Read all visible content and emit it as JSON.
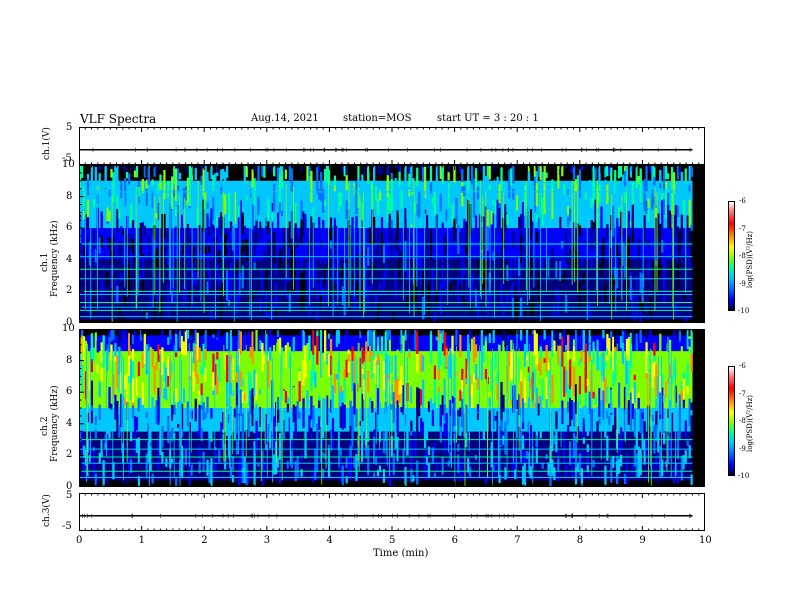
{
  "header": {
    "title": "VLF Spectra",
    "date": "Aug.14, 2021",
    "station": "station=MOS",
    "start": "start UT =   3 : 20 : 1"
  },
  "xaxis": {
    "label": "Time (min)",
    "ticks": [
      "0",
      "1",
      "2",
      "3",
      "4",
      "5",
      "6",
      "7",
      "8",
      "9",
      "10"
    ]
  },
  "panels": {
    "ch1v": {
      "label": "ch.1(V)",
      "ticks": [
        "5",
        "-5"
      ]
    },
    "ch1spec": {
      "label_ch": "ch.1",
      "label_freq": "Frequency (kHz)",
      "ticks": [
        "10",
        "8",
        "6",
        "4",
        "2",
        "0"
      ]
    },
    "ch2spec": {
      "label_ch": "ch.2",
      "label_freq": "Frequency (kHz)",
      "ticks": [
        "10",
        "8",
        "6",
        "4",
        "2",
        "0"
      ]
    },
    "ch3v": {
      "label": "ch.3(V)",
      "ticks": [
        "5",
        "-5"
      ]
    }
  },
  "colorbar": {
    "label": "log(PSD)(V²/Hz)",
    "ticks": [
      "-6",
      "-7",
      "-8",
      "-9",
      "-10"
    ]
  },
  "colors": {
    "scale": [
      "#000000",
      "#0000b0",
      "#0040ff",
      "#00a0ff",
      "#00e0ff",
      "#00ff80",
      "#80ff00",
      "#ffff00",
      "#ff8000",
      "#ff0000",
      "#ffe0e0",
      "#ffffff"
    ]
  },
  "chart_data": {
    "type": "heatmap",
    "title": "VLF Spectra",
    "xlabel": "Time (min)",
    "xlim": [
      0,
      10
    ],
    "panels": [
      {
        "name": "ch.1(V)",
        "type": "line",
        "ylim": [
          -5,
          5
        ],
        "description_values": [
          {
            "x": 0,
            "y": -1
          },
          {
            "x": 9.8,
            "y": -1
          }
        ]
      },
      {
        "name": "ch.1",
        "type": "heatmap",
        "ylabel": "Frequency (kHz)",
        "ylim": [
          0,
          10
        ],
        "zlabel": "log(PSD)(V²/Hz)",
        "zlim": [
          -10,
          -6
        ],
        "bands": [
          {
            "f_from": 9.0,
            "f_to": 10.0,
            "level": -10
          },
          {
            "f_from": 6.0,
            "f_to": 9.0,
            "level": -8.3
          },
          {
            "f_from": 4.0,
            "f_to": 6.0,
            "level": -9.0
          },
          {
            "f_from": 0.2,
            "f_to": 4.0,
            "level": -9.6
          },
          {
            "f_from": 0.0,
            "f_to": 0.2,
            "level": -10
          }
        ],
        "lines_khz": [
          0.4,
          0.8,
          1.0,
          1.3,
          1.8,
          2.0,
          2.8,
          3.4,
          4.2,
          5.0,
          8.3
        ]
      },
      {
        "name": "ch.2",
        "type": "heatmap",
        "ylabel": "Frequency (kHz)",
        "ylim": [
          0,
          10
        ],
        "zlabel": "log(PSD)(V²/Hz)",
        "zlim": [
          -10,
          -6
        ],
        "bands": [
          {
            "f_from": 9.6,
            "f_to": 10.0,
            "level": -10
          },
          {
            "f_from": 8.6,
            "f_to": 9.6,
            "level": -9.3
          },
          {
            "f_from": 5.0,
            "f_to": 8.6,
            "level": -7.4
          },
          {
            "f_from": 3.5,
            "f_to": 5.0,
            "level": -8.4
          },
          {
            "f_from": 0.4,
            "f_to": 3.5,
            "level": -9.4
          },
          {
            "f_from": 0.0,
            "f_to": 0.4,
            "level": -10
          }
        ],
        "lines_khz": [
          0.6,
          1.0,
          1.5,
          1.9,
          2.4,
          3.0
        ]
      },
      {
        "name": "ch.3(V)",
        "type": "line",
        "ylim": [
          -5,
          5
        ],
        "description_values": [
          {
            "x": 0,
            "y": -1
          },
          {
            "x": 9.8,
            "y": -1
          }
        ]
      }
    ],
    "data_end_min": 9.8
  }
}
